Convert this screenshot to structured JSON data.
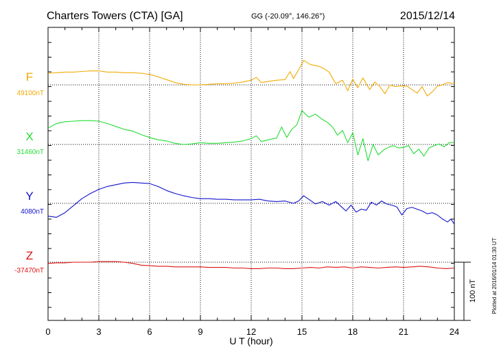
{
  "header": {
    "station": "Charters Towers (CTA)  [GA]",
    "coords": "GG (-20.09°, 146.26°)",
    "date": "2015/12/14"
  },
  "side_note": "Plotted at 2016/01/14 01:30 UT",
  "chart_data": {
    "type": "line",
    "xlabel": "U T (hour)",
    "xlim": [
      0,
      24
    ],
    "xticks": [
      "0",
      "3",
      "6",
      "9",
      "12",
      "15",
      "18",
      "21",
      "24"
    ],
    "scale_label": "100 nT",
    "scale_nT": 100,
    "series": [
      {
        "name": "F",
        "baseline": "49100nT",
        "color": "#f2a900",
        "offsets_nT": [
          [
            0,
            20
          ],
          [
            0.5,
            21
          ],
          [
            1.0,
            22
          ],
          [
            1.5,
            22
          ],
          [
            2.0,
            23
          ],
          [
            2.5,
            24
          ],
          [
            3.0,
            24
          ],
          [
            3.5,
            22
          ],
          [
            4.0,
            22
          ],
          [
            4.5,
            21
          ],
          [
            5.0,
            21
          ],
          [
            5.5,
            20
          ],
          [
            6.0,
            18
          ],
          [
            6.5,
            14
          ],
          [
            7.0,
            9
          ],
          [
            7.5,
            4
          ],
          [
            8.0,
            1
          ],
          [
            8.5,
            0
          ],
          [
            9.0,
            0
          ],
          [
            9.5,
            1
          ],
          [
            10.0,
            2
          ],
          [
            10.5,
            2
          ],
          [
            11.0,
            3
          ],
          [
            11.5,
            5
          ],
          [
            12.0,
            8
          ],
          [
            12.3,
            13
          ],
          [
            12.6,
            4
          ],
          [
            13.0,
            6
          ],
          [
            13.5,
            8
          ],
          [
            14.0,
            9
          ],
          [
            14.3,
            23
          ],
          [
            14.5,
            11
          ],
          [
            14.8,
            26
          ],
          [
            15.1,
            42
          ],
          [
            15.5,
            35
          ],
          [
            16.0,
            32
          ],
          [
            16.3,
            28
          ],
          [
            16.6,
            22
          ],
          [
            17.0,
            2
          ],
          [
            17.4,
            8
          ],
          [
            17.7,
            -10
          ],
          [
            18.0,
            10
          ],
          [
            18.3,
            -5
          ],
          [
            18.6,
            12
          ],
          [
            19.0,
            -8
          ],
          [
            19.3,
            5
          ],
          [
            19.6,
            -3
          ],
          [
            19.9,
            -15
          ],
          [
            20.2,
            0
          ],
          [
            20.5,
            -3
          ],
          [
            20.8,
            -2
          ],
          [
            21.2,
            -2
          ],
          [
            21.5,
            -8
          ],
          [
            21.8,
            -14
          ],
          [
            22.1,
            -3
          ],
          [
            22.4,
            -19
          ],
          [
            22.7,
            -12
          ],
          [
            23.0,
            -2
          ],
          [
            23.3,
            0
          ],
          [
            23.6,
            4
          ],
          [
            24.0,
            2
          ]
        ]
      },
      {
        "name": "X",
        "baseline": "31460nT",
        "color": "#22dd33",
        "offsets_nT": [
          [
            0,
            28
          ],
          [
            0.5,
            36
          ],
          [
            1.0,
            39
          ],
          [
            1.5,
            40
          ],
          [
            2.0,
            41
          ],
          [
            2.5,
            41
          ],
          [
            3.0,
            40
          ],
          [
            3.5,
            36
          ],
          [
            4.0,
            31
          ],
          [
            4.5,
            26
          ],
          [
            5.0,
            23
          ],
          [
            5.5,
            17
          ],
          [
            6.0,
            12
          ],
          [
            6.5,
            8
          ],
          [
            7.0,
            6
          ],
          [
            7.5,
            2
          ],
          [
            8.0,
            0
          ],
          [
            8.5,
            1
          ],
          [
            9.0,
            3
          ],
          [
            9.5,
            2
          ],
          [
            10.0,
            2
          ],
          [
            10.5,
            3
          ],
          [
            11.0,
            4
          ],
          [
            11.5,
            6
          ],
          [
            12.0,
            10
          ],
          [
            12.3,
            15
          ],
          [
            12.6,
            5
          ],
          [
            13.0,
            8
          ],
          [
            13.5,
            11
          ],
          [
            13.8,
            30
          ],
          [
            14.1,
            12
          ],
          [
            14.4,
            26
          ],
          [
            14.7,
            34
          ],
          [
            15.0,
            58
          ],
          [
            15.4,
            47
          ],
          [
            15.8,
            52
          ],
          [
            16.2,
            43
          ],
          [
            16.5,
            38
          ],
          [
            16.8,
            30
          ],
          [
            17.1,
            16
          ],
          [
            17.4,
            24
          ],
          [
            17.7,
            3
          ],
          [
            18.0,
            20
          ],
          [
            18.3,
            -18
          ],
          [
            18.6,
            10
          ],
          [
            18.9,
            -28
          ],
          [
            19.2,
            0
          ],
          [
            19.5,
            -18
          ],
          [
            19.8,
            -10
          ],
          [
            20.1,
            -5
          ],
          [
            20.4,
            -2
          ],
          [
            20.7,
            -6
          ],
          [
            21.0,
            -5
          ],
          [
            21.3,
            -2
          ],
          [
            21.6,
            -16
          ],
          [
            21.9,
            -8
          ],
          [
            22.2,
            -20
          ],
          [
            22.5,
            -6
          ],
          [
            22.8,
            -2
          ],
          [
            23.1,
            1
          ],
          [
            23.4,
            -4
          ],
          [
            23.7,
            3
          ],
          [
            24.0,
            4
          ]
        ]
      },
      {
        "name": "Y",
        "baseline": "4080nT",
        "color": "#1111cc",
        "offsets_nT": [
          [
            0,
            -22
          ],
          [
            0.5,
            -24
          ],
          [
            1.0,
            -16
          ],
          [
            1.5,
            -4
          ],
          [
            2.0,
            8
          ],
          [
            2.5,
            17
          ],
          [
            3.0,
            24
          ],
          [
            3.5,
            29
          ],
          [
            4.0,
            32
          ],
          [
            4.5,
            35
          ],
          [
            5.0,
            36
          ],
          [
            5.5,
            35
          ],
          [
            6.0,
            34
          ],
          [
            6.5,
            29
          ],
          [
            7.0,
            22
          ],
          [
            7.5,
            17
          ],
          [
            8.0,
            13
          ],
          [
            8.5,
            10
          ],
          [
            9.0,
            8
          ],
          [
            9.5,
            8
          ],
          [
            10.0,
            7
          ],
          [
            10.5,
            7
          ],
          [
            11.0,
            6
          ],
          [
            11.5,
            6
          ],
          [
            12.0,
            6
          ],
          [
            12.5,
            7
          ],
          [
            13.0,
            4
          ],
          [
            13.5,
            3
          ],
          [
            14.0,
            4
          ],
          [
            14.5,
            0
          ],
          [
            14.8,
            4
          ],
          [
            15.1,
            13
          ],
          [
            15.4,
            7
          ],
          [
            15.8,
            -1
          ],
          [
            16.2,
            3
          ],
          [
            16.6,
            -3
          ],
          [
            17.0,
            3
          ],
          [
            17.3,
            -5
          ],
          [
            17.6,
            -13
          ],
          [
            17.9,
            -3
          ],
          [
            18.2,
            -15
          ],
          [
            18.5,
            -10
          ],
          [
            18.8,
            -12
          ],
          [
            19.1,
            2
          ],
          [
            19.4,
            -3
          ],
          [
            19.7,
            4
          ],
          [
            20.0,
            -1
          ],
          [
            20.3,
            -3
          ],
          [
            20.6,
            -6
          ],
          [
            20.9,
            -20
          ],
          [
            21.2,
            -9
          ],
          [
            21.5,
            -7
          ],
          [
            21.8,
            -10
          ],
          [
            22.1,
            -13
          ],
          [
            22.4,
            -18
          ],
          [
            22.7,
            -16
          ],
          [
            23.0,
            -20
          ],
          [
            23.3,
            -27
          ],
          [
            23.6,
            -32
          ],
          [
            23.8,
            -27
          ],
          [
            24.0,
            -36
          ]
        ]
      },
      {
        "name": "Z",
        "baseline": "-37470nT",
        "color": "#dd1111",
        "offsets_nT": [
          [
            0,
            -2
          ],
          [
            0.5,
            -1
          ],
          [
            1.0,
            -1
          ],
          [
            1.5,
            0
          ],
          [
            2.0,
            0
          ],
          [
            2.5,
            0
          ],
          [
            3.0,
            1
          ],
          [
            3.5,
            1
          ],
          [
            4.0,
            1
          ],
          [
            4.5,
            0
          ],
          [
            5.0,
            -2
          ],
          [
            5.5,
            -5
          ],
          [
            6.0,
            -6
          ],
          [
            6.5,
            -7
          ],
          [
            7.0,
            -7
          ],
          [
            7.5,
            -8
          ],
          [
            8.0,
            -8
          ],
          [
            8.5,
            -8
          ],
          [
            9.0,
            -8
          ],
          [
            9.5,
            -9
          ],
          [
            10.0,
            -9
          ],
          [
            10.5,
            -9
          ],
          [
            11.0,
            -10
          ],
          [
            11.5,
            -10
          ],
          [
            12.0,
            -11
          ],
          [
            12.5,
            -11
          ],
          [
            13.0,
            -10
          ],
          [
            13.5,
            -10
          ],
          [
            14.0,
            -11
          ],
          [
            14.5,
            -11
          ],
          [
            15.0,
            -10
          ],
          [
            15.5,
            -9
          ],
          [
            16.0,
            -10
          ],
          [
            16.5,
            -8
          ],
          [
            17.0,
            -9
          ],
          [
            17.5,
            -8
          ],
          [
            18.0,
            -10
          ],
          [
            18.5,
            -8
          ],
          [
            19.0,
            -9
          ],
          [
            19.5,
            -10
          ],
          [
            20.0,
            -9
          ],
          [
            20.5,
            -8
          ],
          [
            21.0,
            -9
          ],
          [
            21.5,
            -8
          ],
          [
            22.0,
            -7
          ],
          [
            22.5,
            -8
          ],
          [
            23.0,
            -10
          ],
          [
            23.5,
            -11
          ],
          [
            24.0,
            -10
          ]
        ]
      }
    ]
  }
}
